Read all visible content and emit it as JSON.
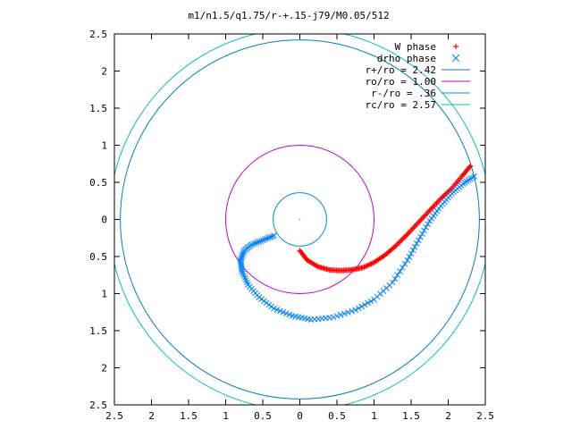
{
  "chart_data": {
    "type": "scatter",
    "title": "m1/n1.5/q1.75/r-+.15-j79/M0.05/512",
    "xlim": [
      -2.5,
      2.5
    ],
    "ylim": [
      -2.5,
      2.5
    ],
    "xticks": [
      -2.5,
      -2,
      -1.5,
      -1,
      -0.5,
      0,
      0.5,
      1,
      1.5,
      2,
      2.5
    ],
    "yticks": [
      -2.5,
      -2,
      -1.5,
      -1,
      -0.5,
      0,
      0.5,
      1,
      1.5,
      2,
      2.5
    ],
    "xtick_labels": [
      "2.5",
      "2",
      "1.5",
      "1",
      "0.5",
      "0",
      "0.5",
      "1",
      "1.5",
      "2",
      "2.5"
    ],
    "ytick_labels": [
      "2.5",
      "2",
      "1.5",
      "1",
      "0.5",
      "0",
      "0.5",
      "1",
      "1.5",
      "2",
      "2.5"
    ],
    "legend_position": "top-right",
    "series": [
      {
        "name": "W phase",
        "marker": "+",
        "color": "#ff0000",
        "points": [
          [
            0.0,
            -0.42
          ],
          [
            0.1,
            -0.55
          ],
          [
            0.25,
            -0.64
          ],
          [
            0.4,
            -0.68
          ],
          [
            0.55,
            -0.69
          ],
          [
            0.7,
            -0.68
          ],
          [
            0.85,
            -0.65
          ],
          [
            1.0,
            -0.58
          ],
          [
            1.15,
            -0.48
          ],
          [
            1.3,
            -0.35
          ],
          [
            1.45,
            -0.2
          ],
          [
            1.6,
            -0.04
          ],
          [
            1.75,
            0.12
          ],
          [
            1.9,
            0.28
          ],
          [
            2.05,
            0.42
          ],
          [
            2.2,
            0.6
          ],
          [
            2.3,
            0.72
          ]
        ]
      },
      {
        "name": "drho phase",
        "marker": "x",
        "color": "#0080ff",
        "points": [
          [
            -0.35,
            -0.22
          ],
          [
            -0.5,
            -0.28
          ],
          [
            -0.65,
            -0.34
          ],
          [
            -0.75,
            -0.42
          ],
          [
            -0.8,
            -0.55
          ],
          [
            -0.78,
            -0.7
          ],
          [
            -0.7,
            -0.88
          ],
          [
            -0.55,
            -1.05
          ],
          [
            -0.35,
            -1.2
          ],
          [
            -0.1,
            -1.3
          ],
          [
            0.15,
            -1.35
          ],
          [
            0.45,
            -1.32
          ],
          [
            0.75,
            -1.22
          ],
          [
            1.0,
            -1.08
          ],
          [
            1.25,
            -0.85
          ],
          [
            1.45,
            -0.55
          ],
          [
            1.6,
            -0.28
          ],
          [
            1.75,
            -0.02
          ],
          [
            1.9,
            0.18
          ],
          [
            2.05,
            0.35
          ],
          [
            2.2,
            0.48
          ],
          [
            2.35,
            0.58
          ]
        ]
      },
      {
        "name": "r+/ro = 2.42",
        "type": "circle",
        "radius": 2.42,
        "color": "#0080c0"
      },
      {
        "name": "ro/ro = 1.00",
        "type": "circle",
        "radius": 1.0,
        "color": "#c000c0"
      },
      {
        "name": "r-/ro = .36",
        "type": "circle",
        "radius": 0.36,
        "color": "#0090d0"
      },
      {
        "name": "rc/ro = 2.57",
        "type": "circle",
        "radius": 2.57,
        "color": "#00c0c0"
      }
    ]
  }
}
